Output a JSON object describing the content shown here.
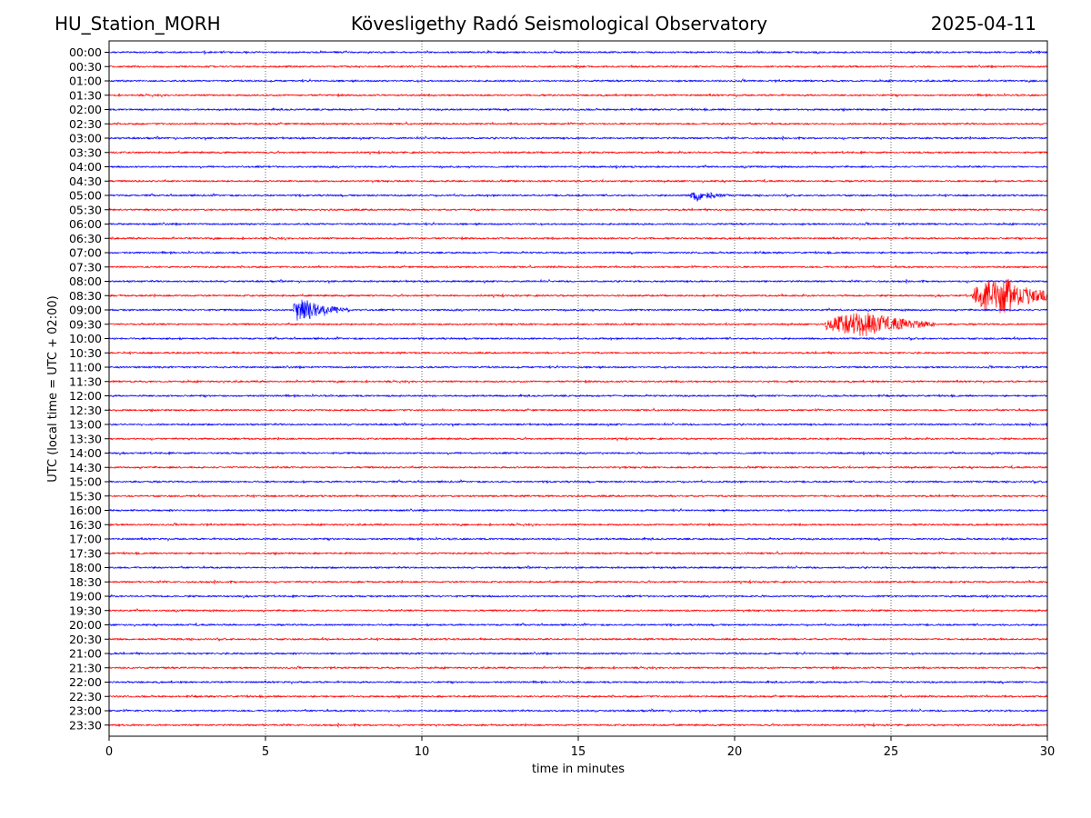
{
  "header": {
    "station": "HU_Station_MORH",
    "title": "Kövesligethy Radó Seismological Observatory",
    "date": "2025-04-11"
  },
  "chart_data": {
    "type": "line",
    "title": "Kövesligethy Radó Seismological Observatory",
    "xlabel": "time in minutes",
    "ylabel": "UTC (local time = UTC + 02:00)",
    "xlim": [
      0,
      30
    ],
    "xticks": [
      0,
      5,
      10,
      15,
      20,
      25,
      30
    ],
    "grid": "vertical dotted lines at x ticks",
    "colors": {
      "even_rows": "#0000ff",
      "odd_rows": "#ff0000"
    },
    "rows": [
      "00:00",
      "00:30",
      "01:00",
      "01:30",
      "02:00",
      "02:30",
      "03:00",
      "03:30",
      "04:00",
      "04:30",
      "05:00",
      "05:30",
      "06:00",
      "06:30",
      "07:00",
      "07:30",
      "08:00",
      "08:30",
      "09:00",
      "09:30",
      "10:00",
      "10:30",
      "11:00",
      "11:30",
      "12:00",
      "12:30",
      "13:00",
      "13:30",
      "14:00",
      "14:30",
      "15:00",
      "15:30",
      "16:00",
      "16:30",
      "17:00",
      "17:30",
      "18:00",
      "18:30",
      "19:00",
      "19:30",
      "20:00",
      "20:30",
      "21:00",
      "21:30",
      "22:00",
      "22:30",
      "23:00",
      "23:30"
    ],
    "events": [
      {
        "row": "05:00",
        "start_min": 18.6,
        "peak_min": 18.8,
        "duration_min": 1.2,
        "amplitude": 0.3
      },
      {
        "row": "08:30",
        "start_min": 27.6,
        "peak_min": 28.6,
        "duration_min": 2.4,
        "amplitude": 1.0
      },
      {
        "row": "09:00",
        "start_min": 5.9,
        "peak_min": 6.1,
        "duration_min": 1.8,
        "amplitude": 0.75
      },
      {
        "row": "09:30",
        "start_min": 22.9,
        "peak_min": 24.1,
        "duration_min": 3.5,
        "amplitude": 0.65
      }
    ]
  }
}
